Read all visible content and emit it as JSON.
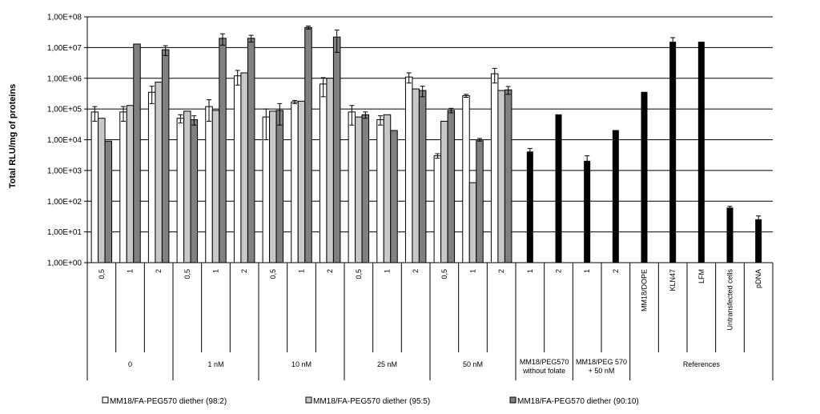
{
  "chart_data": {
    "type": "bar",
    "ylabel": "Total RLU/mg of proteins",
    "yscale": "log",
    "ylim": [
      1,
      100000000
    ],
    "yticks": [
      "1,00E+00",
      "1,00E+01",
      "1,00E+02",
      "1,00E+03",
      "1,00E+04",
      "1,00E+05",
      "1,00E+06",
      "1,00E+07",
      "1,00E+08"
    ],
    "grid": true,
    "legend_position": "bottom",
    "colors": {
      "white": "#ffffff",
      "light": "#c8c8c8",
      "dark": "#808080",
      "black": "#000000"
    },
    "series": [
      {
        "name": "MM18/FA-PEG570 diether (98:2)",
        "color": "#ffffff"
      },
      {
        "name": "MM18/FA-PEG570 diether (95:5)",
        "color": "#c8c8c8"
      },
      {
        "name": "MM18/FA-PEG570 diether (90:10)",
        "color": "#808080"
      }
    ],
    "groups": [
      {
        "label": "0",
        "categories": [
          {
            "label": "0,5",
            "values": [
              80000,
              50000,
              9000
            ],
            "errors": [
              40000,
              0,
              0
            ]
          },
          {
            "label": "1",
            "values": [
              80000,
              130000,
              13000000
            ],
            "errors": [
              40000,
              0,
              0
            ]
          },
          {
            "label": "2",
            "values": [
              350000,
              750000,
              8500000
            ],
            "errors": [
              200000,
              0,
              3000000
            ]
          }
        ]
      },
      {
        "label": "1 nM",
        "categories": [
          {
            "label": "0,5",
            "values": [
              50000,
              85000,
              45000
            ],
            "errors": [
              15000,
              0,
              15000
            ]
          },
          {
            "label": "1",
            "values": [
              120000,
              90000,
              20000000
            ],
            "errors": [
              80000,
              0,
              8000000
            ]
          },
          {
            "label": "2",
            "values": [
              1200000,
              1500000,
              20000000
            ],
            "errors": [
              600000,
              0,
              5000000
            ]
          }
        ]
      },
      {
        "label": "10 nM",
        "categories": [
          {
            "label": "0,5",
            "values": [
              55000,
              85000,
              90000
            ],
            "errors": [
              45000,
              0,
              60000
            ]
          },
          {
            "label": "1",
            "values": [
              170000,
              180000,
              45000000
            ],
            "errors": [
              20000,
              0,
              5000000
            ]
          },
          {
            "label": "2",
            "values": [
              650000,
              1000000,
              22000000
            ],
            "errors": [
              400000,
              0,
              15000000
            ]
          }
        ]
      },
      {
        "label": "25 nM",
        "categories": [
          {
            "label": "0,5",
            "values": [
              80000,
              55000,
              65000
            ],
            "errors": [
              50000,
              0,
              15000
            ]
          },
          {
            "label": "1",
            "values": [
              45000,
              65000,
              20000
            ],
            "errors": [
              15000,
              0,
              0
            ]
          },
          {
            "label": "2",
            "values": [
              1100000,
              450000,
              400000
            ],
            "errors": [
              400000,
              0,
              150000
            ]
          }
        ]
      },
      {
        "label": "50 nM",
        "categories": [
          {
            "label": "0,5",
            "values": [
              3000,
              40000,
              90000
            ],
            "errors": [
              500,
              0,
              15000
            ]
          },
          {
            "label": "1",
            "values": [
              270000,
              400,
              10000
            ],
            "errors": [
              30000,
              0,
              1000
            ]
          },
          {
            "label": "2",
            "values": [
              1400000,
              400000,
              420000
            ],
            "errors": [
              700000,
              0,
              120000
            ]
          }
        ]
      },
      {
        "label": "MM18/PEG570 without folate",
        "categories": [
          {
            "label": "1",
            "black": 4000,
            "error": 1200
          },
          {
            "label": "2",
            "black": 65000,
            "error": 0
          }
        ]
      },
      {
        "label": "MM18/PEG 570 + 50 nM",
        "categories": [
          {
            "label": "1",
            "black": 2000,
            "error": 1000
          },
          {
            "label": "2",
            "black": 20000,
            "error": 0
          }
        ]
      },
      {
        "label": "References",
        "categories": [
          {
            "label": "MM18/DOPE",
            "black": 350000,
            "error": 0
          },
          {
            "label": "KLN47",
            "black": 15000000,
            "error": 6000000
          },
          {
            "label": "LFM",
            "black": 15000000,
            "error": 0
          },
          {
            "label": "Untransfected cells",
            "black": 60,
            "error": 8
          },
          {
            "label": "pDNA",
            "black": 25,
            "error": 8
          }
        ]
      }
    ]
  }
}
